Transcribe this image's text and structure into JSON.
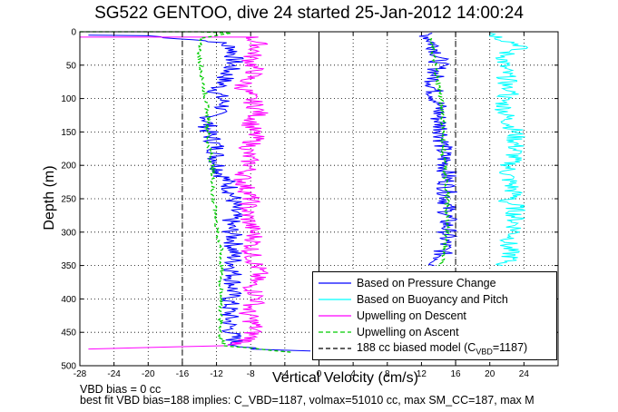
{
  "title": "SG522 GENTOO, dive 24 started 25-Jan-2012 14:00:24",
  "footer": {
    "line1": "VBD bias = 0 cc",
    "line2": "best fit VBD bias=188 implies: C_VBD=1187, volmax=51010 cc, max SM_CC=187, max M"
  },
  "chart_data": {
    "type": "line",
    "title": "SG522 GENTOO, dive 24 started 25-Jan-2012 14:00:24",
    "xlabel": "Vertical Velocity (cm/s)",
    "ylabel": "Depth (m)",
    "xlim": [
      -28,
      28
    ],
    "ylim": [
      500,
      0
    ],
    "y_reversed": true,
    "grid": true,
    "xticks": [
      "-28",
      "-24",
      "-20",
      "-16",
      "-12",
      "-8",
      "-4",
      "0",
      "4",
      "8",
      "12",
      "16",
      "20",
      "24"
    ],
    "yticks": [
      "0",
      "50",
      "100",
      "150",
      "200",
      "250",
      "300",
      "350",
      "400",
      "450",
      "500"
    ],
    "legend_location": "lower-right",
    "legend": [
      {
        "label": "Based on Pressure Change",
        "color": "#0000ff",
        "style": "solid"
      },
      {
        "label": "Based on Buoyancy and Pitch",
        "color": "#00ffff",
        "style": "solid"
      },
      {
        "label": "Upwelling on Descent",
        "color": "#ff00ff",
        "style": "solid"
      },
      {
        "label": "Upwelling on Ascent",
        "color": "#00cc00",
        "style": "dashed"
      },
      {
        "label_main": "188 cc biased model (C",
        "label_sub": "VBD",
        "label_end": "=1187)",
        "color": "#000000",
        "style": "dashed"
      }
    ],
    "vlines": [
      -16,
      16
    ],
    "series": [
      {
        "color": "#0000ff",
        "x": [
          -27,
          -20,
          -12,
          -10,
          -10,
          -11,
          -12,
          -11,
          -13,
          -13,
          -12,
          -12,
          -11.5,
          -10.5,
          -10,
          -10,
          -10.5,
          -10,
          -10,
          -10,
          -10,
          -10.5,
          -10.5,
          -10,
          -9.5,
          -8,
          -1
        ],
        "y": [
          5,
          6,
          15,
          25,
          45,
          70,
          90,
          110,
          130,
          150,
          170,
          190,
          210,
          230,
          250,
          270,
          290,
          310,
          330,
          350,
          380,
          410,
          440,
          460,
          470,
          475,
          478
        ]
      },
      {
        "color": "#0000ff",
        "x": [
          12.5,
          13,
          13.5,
          14,
          14,
          13.5,
          13.5,
          14,
          14,
          14.5,
          14.5,
          15,
          15,
          15,
          15,
          14.5,
          14,
          13.5
        ],
        "y": [
          2,
          10,
          20,
          30,
          50,
          70,
          90,
          110,
          130,
          150,
          180,
          210,
          240,
          270,
          300,
          330,
          345,
          350
        ]
      },
      {
        "color": "#00ffff",
        "x": [
          20.5,
          21,
          24,
          22,
          21.5,
          22,
          22,
          21.5,
          22,
          24,
          22,
          21.5,
          22,
          23,
          23,
          22,
          23,
          21.5,
          23,
          23,
          22,
          22.5,
          22,
          21.5
        ],
        "y": [
          2,
          8,
          22,
          30,
          50,
          70,
          80,
          85,
          88,
          90,
          95,
          100,
          130,
          150,
          180,
          210,
          250,
          252,
          260,
          300,
          320,
          335,
          345,
          350
        ]
      },
      {
        "color": "#ff00ff",
        "x": [
          -28,
          -20,
          -8,
          -7,
          -8,
          -7.5,
          -9,
          -8,
          -7,
          -8,
          -7.5,
          -8.5,
          -8,
          -9,
          -8,
          -8.5,
          -8,
          -7.5,
          -8,
          -7,
          -8,
          -7,
          -8.5,
          -7.5,
          -8,
          -10,
          -27
        ],
        "y": [
          8,
          8,
          8,
          20,
          40,
          60,
          80,
          100,
          120,
          140,
          160,
          180,
          200,
          220,
          250,
          270,
          290,
          310,
          330,
          360,
          380,
          400,
          420,
          440,
          460,
          470,
          475
        ]
      },
      {
        "color": "#00cc00",
        "dashed": true,
        "x": [
          -28,
          -14,
          -10.5,
          -14,
          -14,
          -13.5,
          -13,
          -13,
          -12.5,
          -12.5,
          -12,
          -12,
          -11.5,
          -11.5,
          -11.5,
          -11.5,
          -11.5,
          -11.5,
          -11,
          -3
        ],
        "y": [
          0,
          0,
          2,
          10,
          40,
          80,
          120,
          160,
          200,
          240,
          280,
          300,
          320,
          350,
          380,
          410,
          440,
          460,
          470,
          480
        ]
      },
      {
        "color": "#00cc00",
        "dashed": true,
        "x": [
          13,
          13.5,
          14,
          14.5,
          14.5,
          15,
          15,
          14.5,
          14
        ],
        "y": [
          10,
          40,
          80,
          120,
          180,
          240,
          300,
          340,
          350
        ]
      }
    ]
  }
}
